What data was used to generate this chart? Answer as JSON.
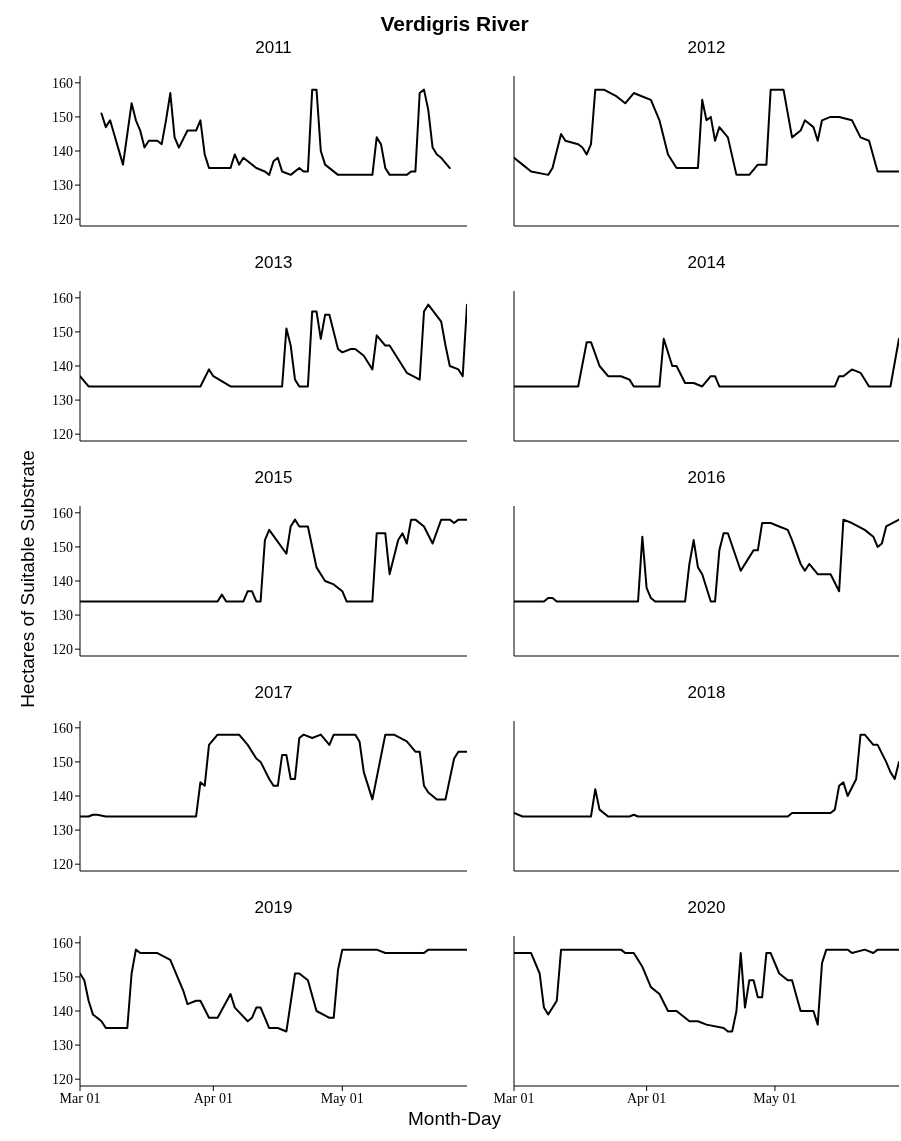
{
  "chart_data": [
    {
      "type": "line",
      "title": "2011",
      "annotations": [
        "Verdigris River"
      ],
      "color": "#000000",
      "xlim": [
        "--03-01",
        "--05-30"
      ],
      "xticks": [
        {
          "value": "--03-01",
          "label": null
        },
        {
          "value": "--04-01",
          "label": null
        },
        {
          "value": "--05-01",
          "label": null
        }
      ],
      "ylim": [
        118,
        162
      ],
      "yticks": [
        120,
        130,
        140,
        150,
        160
      ],
      "tick_labels": "y",
      "x": [
        "--03-06",
        "--03-07",
        "--03-08",
        "--03-11",
        "--03-13",
        "--03-14",
        "--03-15",
        "--03-16",
        "--03-17",
        "--03-19",
        "--03-20",
        "--03-21",
        "--03-22",
        "--03-23",
        "--03-24",
        "--03-26",
        "--03-28",
        "--03-29",
        "--03-30",
        "--03-31",
        "--04-04",
        "--04-05",
        "--04-06",
        "--04-07",
        "--04-08",
        "--04-11",
        "--04-13",
        "--04-14",
        "--04-15",
        "--04-16",
        "--04-17",
        "--04-19",
        "--04-21",
        "--04-22",
        "--04-23",
        "--04-24",
        "--04-25",
        "--04-26",
        "--04-27",
        "--04-30",
        "--05-08",
        "--05-09",
        "--05-10",
        "--05-11",
        "--05-12",
        "--05-16",
        "--05-17",
        "--05-18",
        "--05-19",
        "--05-20",
        "--05-21",
        "--05-22",
        "--05-23",
        "--05-24",
        "--05-26"
      ],
      "values": [
        151,
        147,
        149,
        136,
        154,
        149,
        146,
        141,
        143,
        143,
        142,
        149,
        157,
        144,
        141,
        146,
        146,
        149,
        139,
        135,
        135,
        135,
        139,
        136,
        138,
        135,
        134,
        133,
        137,
        138,
        134,
        133,
        135,
        134,
        134,
        158,
        158,
        140,
        136,
        133,
        133,
        144,
        142,
        135,
        133,
        133,
        134,
        134,
        157,
        158,
        152,
        141,
        139,
        138,
        135
      ]
    },
    {
      "type": "line",
      "title": "2012",
      "color": "#000000",
      "xlim": [
        "--03-01",
        "--05-30"
      ],
      "xticks": [
        {
          "value": "--03-01",
          "label": null
        },
        {
          "value": "--04-01",
          "label": null
        },
        {
          "value": "--05-01",
          "label": null
        }
      ],
      "ylim": [
        118,
        162
      ],
      "yticks": [
        120,
        130,
        140,
        150,
        160
      ],
      "tick_labels": false,
      "x": [
        "--03-01",
        "--03-03",
        "--03-05",
        "--03-09",
        "--03-10",
        "--03-12",
        "--03-13",
        "--03-16",
        "--03-17",
        "--03-18",
        "--03-19",
        "--03-20",
        "--03-22",
        "--03-25",
        "--03-27",
        "--03-29",
        "--03-31",
        "--04-02",
        "--04-04",
        "--04-06",
        "--04-08",
        "--04-10",
        "--04-13",
        "--04-14",
        "--04-15",
        "--04-16",
        "--04-17",
        "--04-18",
        "--04-20",
        "--04-22",
        "--04-25",
        "--04-27",
        "--04-29",
        "--04-30",
        "--05-03",
        "--05-05",
        "--05-07",
        "--05-08",
        "--05-10",
        "--05-11",
        "--05-12",
        "--05-14",
        "--05-16",
        "--05-19",
        "--05-21",
        "--05-23",
        "--05-25",
        "--05-30"
      ],
      "values": [
        138,
        136,
        134,
        133,
        135,
        145,
        143,
        142,
        141,
        139,
        142,
        158,
        158,
        156,
        154,
        157,
        156,
        155,
        149,
        139,
        135,
        135,
        135,
        155,
        149,
        150,
        143,
        147,
        144,
        133,
        133,
        136,
        136,
        158,
        158,
        144,
        146,
        149,
        147,
        143,
        149,
        150,
        150,
        149,
        144,
        143,
        134,
        134
      ]
    },
    {
      "type": "line",
      "title": "2013",
      "color": "#000000",
      "xlim": [
        "--03-01",
        "--05-30"
      ],
      "xticks": [
        {
          "value": "--03-01",
          "label": null
        },
        {
          "value": "--04-01",
          "label": null
        },
        {
          "value": "--05-01",
          "label": null
        }
      ],
      "ylim": [
        118,
        162
      ],
      "yticks": [
        120,
        130,
        140,
        150,
        160
      ],
      "tick_labels": "y",
      "x": [
        "--03-01",
        "--03-03",
        "--03-29",
        "--03-31",
        "--04-01",
        "--04-05",
        "--04-17",
        "--04-18",
        "--04-19",
        "--04-20",
        "--04-21",
        "--04-23",
        "--04-24",
        "--04-25",
        "--04-26",
        "--04-27",
        "--04-28",
        "--04-30",
        "--05-01",
        "--05-03",
        "--05-04",
        "--05-06",
        "--05-08",
        "--05-09",
        "--05-11",
        "--05-12",
        "--05-16",
        "--05-19",
        "--05-20",
        "--05-21",
        "--05-24",
        "--05-25",
        "--05-26",
        "--05-28",
        "--05-29",
        "--05-30"
      ],
      "values": [
        137,
        134,
        134,
        139,
        137,
        134,
        134,
        151,
        146,
        136,
        134,
        134,
        156,
        156,
        148,
        155,
        155,
        145,
        144,
        145,
        145,
        143,
        139,
        149,
        146,
        146,
        138,
        136,
        156,
        158,
        153,
        146,
        140,
        139,
        137,
        158
      ]
    },
    {
      "type": "line",
      "title": "2014",
      "color": "#000000",
      "xlim": [
        "--03-01",
        "--05-30"
      ],
      "xticks": [
        {
          "value": "--03-01",
          "label": null
        },
        {
          "value": "--04-01",
          "label": null
        },
        {
          "value": "--05-01",
          "label": null
        }
      ],
      "ylim": [
        118,
        162
      ],
      "yticks": [
        120,
        130,
        140,
        150,
        160
      ],
      "tick_labels": false,
      "x": [
        "--03-01",
        "--03-16",
        "--03-18",
        "--03-19",
        "--03-21",
        "--03-23",
        "--03-26",
        "--03-28",
        "--03-29",
        "--04-04",
        "--04-05",
        "--04-07",
        "--04-08",
        "--04-10",
        "--04-12",
        "--04-14",
        "--04-16",
        "--04-17",
        "--04-18",
        "--04-24",
        "--05-15",
        "--05-16",
        "--05-17",
        "--05-19",
        "--05-21",
        "--05-23",
        "--05-28",
        "--05-30"
      ],
      "values": [
        134,
        134,
        147,
        147,
        140,
        137,
        137,
        136,
        134,
        134,
        148,
        140,
        140,
        135,
        135,
        134,
        137,
        137,
        134,
        134,
        134,
        137,
        137,
        139,
        138,
        134,
        134,
        148
      ]
    },
    {
      "type": "line",
      "title": "2015",
      "ylabel": "Hectares of Suitable Substrate",
      "color": "#000000",
      "xlim": [
        "--03-01",
        "--05-30"
      ],
      "xticks": [
        {
          "value": "--03-01",
          "label": null
        },
        {
          "value": "--04-01",
          "label": null
        },
        {
          "value": "--05-01",
          "label": null
        }
      ],
      "ylim": [
        118,
        162
      ],
      "yticks": [
        120,
        130,
        140,
        150,
        160
      ],
      "tick_labels": "y",
      "x": [
        "--03-01",
        "--04-02",
        "--04-03",
        "--04-04",
        "--04-08",
        "--04-09",
        "--04-10",
        "--04-11",
        "--04-12",
        "--04-13",
        "--04-14",
        "--04-18",
        "--04-19",
        "--04-20",
        "--04-21",
        "--04-23",
        "--04-25",
        "--04-27",
        "--04-29",
        "--05-01",
        "--05-02",
        "--05-04",
        "--05-08",
        "--05-09",
        "--05-11",
        "--05-12",
        "--05-14",
        "--05-15",
        "--05-16",
        "--05-17",
        "--05-18",
        "--05-20",
        "--05-22",
        "--05-24",
        "--05-26",
        "--05-27",
        "--05-28",
        "--05-30"
      ],
      "values": [
        134,
        134,
        136,
        134,
        134,
        137,
        137,
        134,
        134,
        152,
        155,
        148,
        156,
        158,
        156,
        156,
        144,
        140,
        139,
        137,
        134,
        134,
        134,
        154,
        154,
        142,
        152,
        154,
        151,
        158,
        158,
        156,
        151,
        158,
        158,
        157,
        158,
        158
      ]
    },
    {
      "type": "line",
      "title": "2016",
      "color": "#000000",
      "xlim": [
        "--03-01",
        "--05-30"
      ],
      "xticks": [
        {
          "value": "--03-01",
          "label": null
        },
        {
          "value": "--04-01",
          "label": null
        },
        {
          "value": "--05-01",
          "label": null
        }
      ],
      "ylim": [
        118,
        162
      ],
      "yticks": [
        120,
        130,
        140,
        150,
        160
      ],
      "tick_labels": false,
      "x": [
        "--03-01",
        "--03-08",
        "--03-09",
        "--03-10",
        "--03-11",
        "--03-15",
        "--03-30",
        "--03-31",
        "--04-01",
        "--04-02",
        "--04-03",
        "--04-10",
        "--04-11",
        "--04-12",
        "--04-13",
        "--04-14",
        "--04-16",
        "--04-17",
        "--04-18",
        "--04-19",
        "--04-20",
        "--04-23",
        "--04-25",
        "--04-26",
        "--04-27",
        "--04-28",
        "--04-30",
        "--05-02",
        "--05-04",
        "--05-05",
        "--05-07",
        "--05-08",
        "--05-09",
        "--05-11",
        "--05-13",
        "--05-14",
        "--05-16",
        "--05-17",
        "--05-19",
        "--05-22",
        "--05-24",
        "--05-25",
        "--05-26",
        "--05-27",
        "--05-30"
      ],
      "values": [
        134,
        134,
        135,
        135,
        134,
        134,
        134,
        153,
        138,
        135,
        134,
        134,
        145,
        152,
        144,
        142,
        134,
        134,
        149,
        154,
        154,
        143,
        147,
        149,
        149,
        157,
        157,
        156,
        155,
        152,
        145,
        143,
        145,
        142,
        142,
        142,
        137,
        158,
        157,
        155,
        153,
        150,
        151,
        156,
        158
      ]
    },
    {
      "type": "line",
      "title": "2017",
      "color": "#000000",
      "xlim": [
        "--03-01",
        "--05-30"
      ],
      "xticks": [
        {
          "value": "--03-01",
          "label": null
        },
        {
          "value": "--04-01",
          "label": null
        },
        {
          "value": "--05-01",
          "label": null
        }
      ],
      "ylim": [
        118,
        162
      ],
      "yticks": [
        120,
        130,
        140,
        150,
        160
      ],
      "tick_labels": "y",
      "x": [
        "--03-01",
        "--03-03",
        "--03-04",
        "--03-05",
        "--03-07",
        "--03-28",
        "--03-29",
        "--03-30",
        "--03-31",
        "--04-02",
        "--04-05",
        "--04-07",
        "--04-09",
        "--04-11",
        "--04-12",
        "--04-14",
        "--04-15",
        "--04-16",
        "--04-17",
        "--04-18",
        "--04-19",
        "--04-20",
        "--04-21",
        "--04-22",
        "--04-24",
        "--04-26",
        "--04-28",
        "--04-29",
        "--05-04",
        "--05-05",
        "--05-06",
        "--05-08",
        "--05-11",
        "--05-13",
        "--05-16",
        "--05-18",
        "--05-19",
        "--05-20",
        "--05-21",
        "--05-23",
        "--05-25",
        "--05-27",
        "--05-28",
        "--05-30"
      ],
      "values": [
        134,
        134,
        134.5,
        134.5,
        134,
        134,
        144,
        143,
        155,
        158,
        158,
        158,
        155,
        151,
        150,
        145,
        143,
        143,
        152,
        152,
        145,
        145,
        157,
        158,
        157,
        158,
        155,
        158,
        158,
        156,
        147,
        139,
        158,
        158,
        156,
        153,
        153,
        143,
        141,
        139,
        139,
        151,
        153,
        153
      ]
    },
    {
      "type": "line",
      "title": "2018",
      "color": "#000000",
      "xlim": [
        "--03-01",
        "--05-30"
      ],
      "xticks": [
        {
          "value": "--03-01",
          "label": null
        },
        {
          "value": "--04-01",
          "label": null
        },
        {
          "value": "--05-01",
          "label": null
        }
      ],
      "ylim": [
        118,
        162
      ],
      "yticks": [
        120,
        130,
        140,
        150,
        160
      ],
      "tick_labels": false,
      "x": [
        "--03-01",
        "--03-03",
        "--03-19",
        "--03-20",
        "--03-21",
        "--03-23",
        "--03-28",
        "--03-29",
        "--03-30",
        "--05-04",
        "--05-05",
        "--05-14",
        "--05-15",
        "--05-16",
        "--05-17",
        "--05-18",
        "--05-20",
        "--05-21",
        "--05-22",
        "--05-24",
        "--05-25",
        "--05-27",
        "--05-28",
        "--05-29",
        "--05-30"
      ],
      "values": [
        135,
        134,
        134,
        142,
        136,
        134,
        134,
        134.5,
        134,
        134,
        135,
        135,
        136,
        143,
        144,
        140,
        145,
        158,
        158,
        155,
        155,
        150,
        147,
        145,
        150
      ]
    },
    {
      "type": "line",
      "title": "2019",
      "xlabel": "Month-Day",
      "color": "#000000",
      "xlim": [
        "--03-01",
        "--05-30"
      ],
      "xticks": [
        {
          "value": "--03-01",
          "label": "Mar 01"
        },
        {
          "value": "--04-01",
          "label": "Apr 01"
        },
        {
          "value": "--05-01",
          "label": "May 01"
        }
      ],
      "ylim": [
        118,
        162
      ],
      "yticks": [
        120,
        130,
        140,
        150,
        160
      ],
      "x": [
        "--03-01",
        "--03-02",
        "--03-03",
        "--03-04",
        "--03-06",
        "--03-07",
        "--03-08",
        "--03-11",
        "--03-12",
        "--03-13",
        "--03-14",
        "--03-15",
        "--03-19",
        "--03-22",
        "--03-23",
        "--03-25",
        "--03-26",
        "--03-28",
        "--03-29",
        "--03-31",
        "--04-02",
        "--04-05",
        "--04-06",
        "--04-09",
        "--04-10",
        "--04-11",
        "--04-12",
        "--04-14",
        "--04-16",
        "--04-18",
        "--04-20",
        "--04-21",
        "--04-23",
        "--04-25",
        "--04-28",
        "--04-29",
        "--04-30",
        "--05-01",
        "--05-09",
        "--05-11",
        "--05-20",
        "--05-21",
        "--05-30"
      ],
      "values": [
        151,
        149,
        143,
        139,
        137,
        135,
        135,
        135,
        135,
        151,
        158,
        157,
        157,
        155,
        152,
        146,
        142,
        143,
        143,
        138,
        138,
        145,
        141,
        137,
        138,
        141,
        141,
        135,
        135,
        134,
        151,
        151,
        149,
        140,
        138,
        138,
        152,
        158,
        158,
        157,
        157,
        158,
        158
      ]
    },
    {
      "type": "line",
      "title": "2020",
      "color": "#000000",
      "xlim": [
        "--03-01",
        "--05-30"
      ],
      "xticks": [
        {
          "value": "--03-01",
          "label": "Mar 01"
        },
        {
          "value": "--04-01",
          "label": "Apr 01"
        },
        {
          "value": "--05-01",
          "label": "May 01"
        }
      ],
      "ylim": [
        118,
        162
      ],
      "yticks": [
        120,
        130,
        140,
        150,
        160
      ],
      "tick_labels": "x",
      "x": [
        "--03-01",
        "--03-05",
        "--03-07",
        "--03-08",
        "--03-09",
        "--03-11",
        "--03-12",
        "--03-16",
        "--03-22",
        "--03-26",
        "--03-27",
        "--03-29",
        "--03-31",
        "--04-02",
        "--04-04",
        "--04-06",
        "--04-08",
        "--04-11",
        "--04-13",
        "--04-15",
        "--04-19",
        "--04-20",
        "--04-21",
        "--04-22",
        "--04-23",
        "--04-24",
        "--04-25",
        "--04-26",
        "--04-27",
        "--04-28",
        "--04-29",
        "--04-30",
        "--05-02",
        "--05-04",
        "--05-05",
        "--05-07",
        "--05-08",
        "--05-10",
        "--05-11",
        "--05-12",
        "--05-13",
        "--05-18",
        "--05-19",
        "--05-22",
        "--05-24",
        "--05-25",
        "--05-30"
      ],
      "values": [
        157,
        157,
        151,
        141,
        139,
        143,
        158,
        158,
        158,
        158,
        157,
        157,
        153,
        147,
        145,
        140,
        140,
        137,
        137,
        136,
        135,
        134,
        134,
        140,
        157,
        141,
        149,
        149,
        144,
        144,
        157,
        157,
        151,
        149,
        149,
        140,
        140,
        140,
        136,
        154,
        158,
        158,
        157,
        158,
        157,
        158,
        158
      ]
    }
  ]
}
